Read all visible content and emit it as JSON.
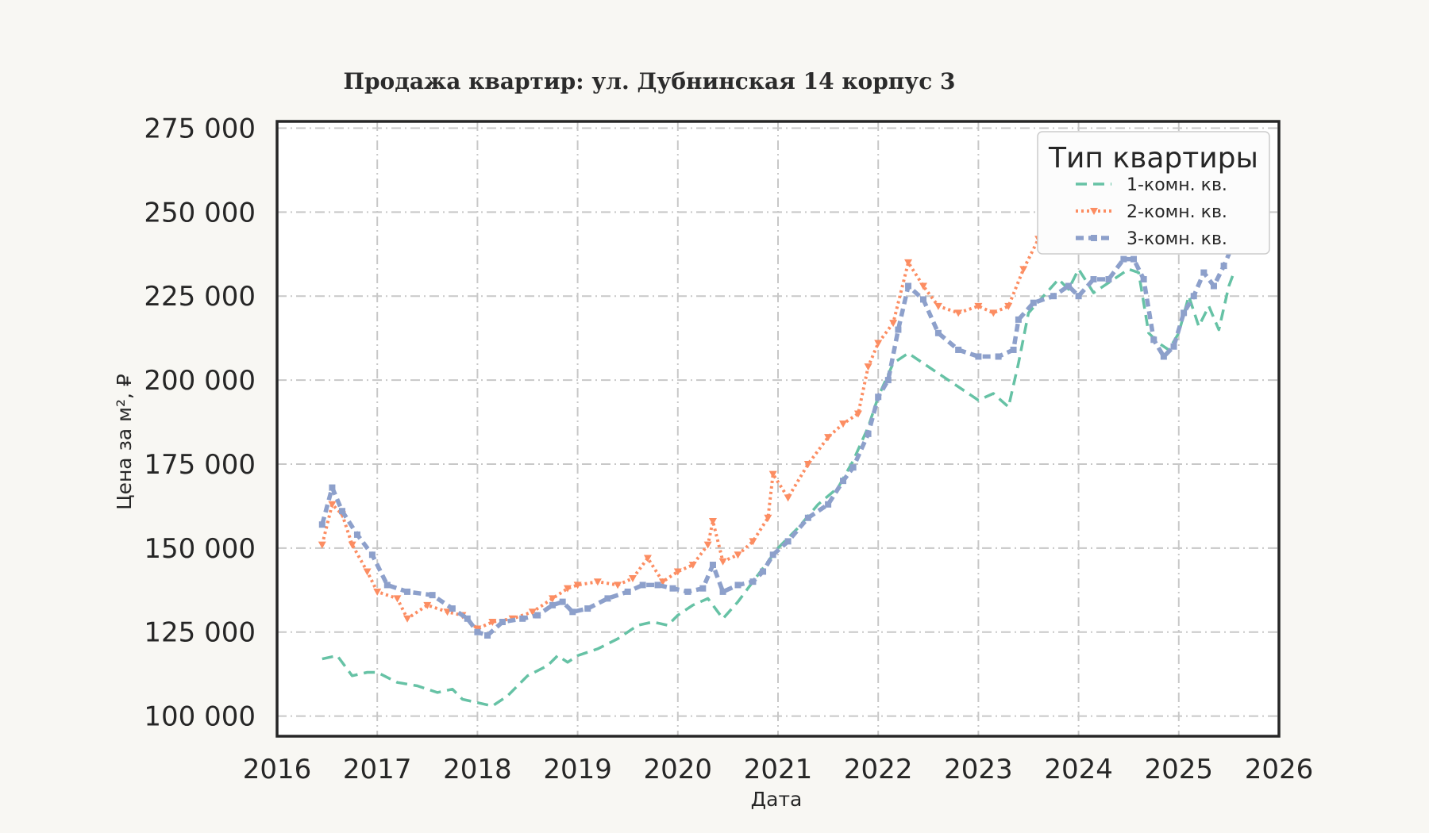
{
  "chart_data": {
    "type": "line",
    "title": "Продажа квартир: ул. Дубнинская 14 корпус 3",
    "xlabel": "Дата",
    "ylabel": "Цена за м², ₽",
    "xlim": [
      2016,
      2026
    ],
    "ylim": [
      94000,
      277000
    ],
    "x_ticks": [
      "2016",
      "2017",
      "2018",
      "2019",
      "2020",
      "2021",
      "2022",
      "2023",
      "2024",
      "2025",
      "2026"
    ],
    "y_ticks": [
      100000,
      125000,
      150000,
      175000,
      200000,
      225000,
      250000,
      275000
    ],
    "y_tick_labels": [
      "100 000",
      "125 000",
      "150 000",
      "175 000",
      "200 000",
      "225 000",
      "250 000",
      "275 000"
    ],
    "grid": true,
    "legend": {
      "title": "Тип квартиры",
      "position": "top-right"
    },
    "series": [
      {
        "name": "1-комн. кв.",
        "color": "#66c2a5",
        "style": "dashed",
        "x": [
          2016.45,
          2016.6,
          2016.75,
          2016.9,
          2017.0,
          2017.2,
          2017.4,
          2017.6,
          2017.75,
          2017.85,
          2018.0,
          2018.15,
          2018.3,
          2018.5,
          2018.7,
          2018.8,
          2018.9,
          2019.0,
          2019.2,
          2019.4,
          2019.6,
          2019.75,
          2019.9,
          2020.0,
          2020.15,
          2020.3,
          2020.45,
          2020.6,
          2020.75,
          2020.9,
          2021.0,
          2021.2,
          2021.4,
          2021.6,
          2021.75,
          2021.9,
          2022.0,
          2022.15,
          2022.3,
          2022.5,
          2022.7,
          2022.9,
          2023.0,
          2023.15,
          2023.3,
          2023.4,
          2023.5,
          2023.65,
          2023.8,
          2023.9,
          2024.0,
          2024.15,
          2024.3,
          2024.5,
          2024.6,
          2024.7,
          2024.8,
          2024.9,
          2025.0,
          2025.1,
          2025.2,
          2025.3,
          2025.4,
          2025.5,
          2025.55
        ],
        "values": [
          117000,
          118000,
          112000,
          113000,
          113000,
          110000,
          109000,
          107000,
          108000,
          105000,
          104000,
          103000,
          106000,
          112000,
          115000,
          118000,
          116000,
          118000,
          120000,
          123000,
          127000,
          128000,
          127000,
          130000,
          133000,
          135000,
          129000,
          134000,
          140000,
          146000,
          150000,
          156000,
          163000,
          168000,
          176000,
          186000,
          195000,
          205000,
          208000,
          204000,
          200000,
          196000,
          194000,
          196000,
          192000,
          205000,
          220000,
          225000,
          230000,
          227000,
          233000,
          226000,
          229000,
          233000,
          232000,
          214000,
          211000,
          209000,
          214000,
          225000,
          216000,
          222000,
          215000,
          228000,
          232000
        ]
      },
      {
        "name": "2-комн. кв.",
        "color": "#fc8d62",
        "style": "dotted",
        "x": [
          2016.45,
          2016.55,
          2016.65,
          2016.75,
          2016.9,
          2017.0,
          2017.2,
          2017.3,
          2017.5,
          2017.7,
          2017.85,
          2018.0,
          2018.15,
          2018.35,
          2018.55,
          2018.75,
          2018.9,
          2019.0,
          2019.2,
          2019.4,
          2019.55,
          2019.7,
          2019.85,
          2020.0,
          2020.15,
          2020.3,
          2020.35,
          2020.45,
          2020.6,
          2020.75,
          2020.9,
          2020.95,
          2021.1,
          2021.3,
          2021.5,
          2021.65,
          2021.8,
          2021.9,
          2022.0,
          2022.15,
          2022.3,
          2022.45,
          2022.6,
          2022.8,
          2023.0,
          2023.15,
          2023.3,
          2023.45,
          2023.6,
          2023.8,
          2024.0,
          2024.15,
          2024.3,
          2024.45,
          2024.6,
          2024.75,
          2024.9,
          2025.0,
          2025.15,
          2025.3,
          2025.45,
          2025.55
        ],
        "values": [
          151000,
          163000,
          160000,
          151000,
          143000,
          137000,
          135000,
          129000,
          133000,
          131000,
          130000,
          126000,
          128000,
          129000,
          131000,
          135000,
          138000,
          139000,
          140000,
          139000,
          141000,
          147000,
          140000,
          143000,
          145000,
          151000,
          158000,
          146000,
          148000,
          152000,
          159000,
          172000,
          165000,
          175000,
          183000,
          187000,
          190000,
          204000,
          211000,
          217000,
          235000,
          228000,
          222000,
          220000,
          222000,
          220000,
          222000,
          233000,
          242000,
          248000,
          243000,
          244000,
          246000,
          248000,
          243000,
          240000,
          244000,
          246000,
          243000,
          245000,
          248000,
          254000
        ]
      },
      {
        "name": "3-комн. кв.",
        "color": "#8da0cb",
        "style": "dashed-square",
        "x": [
          2016.45,
          2016.55,
          2016.65,
          2016.8,
          2016.95,
          2017.1,
          2017.3,
          2017.55,
          2017.75,
          2017.9,
          2018.0,
          2018.1,
          2018.25,
          2018.45,
          2018.6,
          2018.75,
          2018.85,
          2018.95,
          2019.1,
          2019.3,
          2019.5,
          2019.65,
          2019.8,
          2019.95,
          2020.1,
          2020.25,
          2020.35,
          2020.45,
          2020.6,
          2020.75,
          2020.85,
          2020.95,
          2021.1,
          2021.3,
          2021.5,
          2021.65,
          2021.75,
          2021.9,
          2022.0,
          2022.1,
          2022.2,
          2022.3,
          2022.45,
          2022.6,
          2022.8,
          2023.0,
          2023.2,
          2023.35,
          2023.4,
          2023.55,
          2023.75,
          2023.9,
          2024.0,
          2024.15,
          2024.3,
          2024.45,
          2024.55,
          2024.65,
          2024.75,
          2024.85,
          2024.95,
          2025.05,
          2025.15,
          2025.25,
          2025.35,
          2025.45,
          2025.55
        ],
        "values": [
          157000,
          168000,
          161000,
          154000,
          148000,
          139000,
          137000,
          136000,
          132000,
          129000,
          125000,
          124000,
          128000,
          129000,
          130000,
          133000,
          134000,
          131000,
          132000,
          135000,
          137000,
          139000,
          139000,
          138000,
          137000,
          138000,
          145000,
          137000,
          139000,
          140000,
          143000,
          148000,
          152000,
          159000,
          163000,
          170000,
          174000,
          184000,
          195000,
          200000,
          215000,
          228000,
          224000,
          214000,
          209000,
          207000,
          207000,
          209000,
          218000,
          223000,
          225000,
          228000,
          225000,
          230000,
          230000,
          236000,
          236000,
          230000,
          212000,
          207000,
          210000,
          220000,
          225000,
          232000,
          228000,
          234000,
          241000
        ]
      }
    ]
  }
}
